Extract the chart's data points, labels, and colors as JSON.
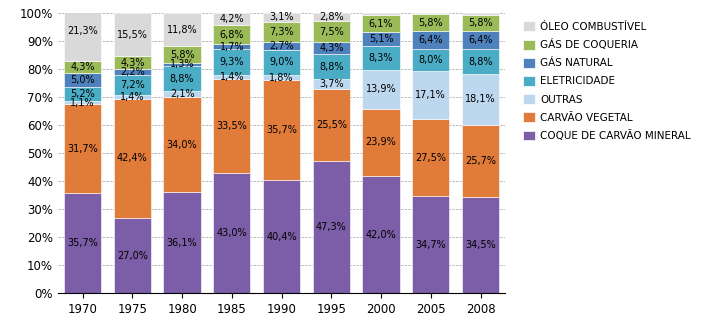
{
  "years": [
    "1970",
    "1975",
    "1980",
    "1985",
    "1990",
    "1995",
    "2000",
    "2005",
    "2008"
  ],
  "series": {
    "COQUE DE CARVÃO MINERAL": [
      35.7,
      27.0,
      36.1,
      43.0,
      40.4,
      47.3,
      42.0,
      34.7,
      34.5
    ],
    "CARVÃO VEGETAL": [
      31.7,
      42.4,
      34.0,
      33.5,
      35.7,
      25.5,
      23.9,
      27.5,
      25.7
    ],
    "OUTRAS": [
      1.1,
      1.4,
      2.1,
      1.4,
      1.8,
      3.7,
      13.9,
      17.1,
      18.1
    ],
    "ELETRICIDADE": [
      5.2,
      7.2,
      8.8,
      9.3,
      9.0,
      8.8,
      8.3,
      8.0,
      8.8
    ],
    "GÁS NATURAL": [
      5.0,
      2.2,
      1.3,
      1.7,
      2.7,
      4.3,
      5.1,
      6.4,
      6.4
    ],
    "GÁS DE COQUERIA": [
      4.3,
      4.3,
      5.8,
      6.8,
      7.3,
      7.5,
      6.1,
      5.8,
      5.8
    ],
    "ÓLEO COMBUSTÍVEL": [
      21.3,
      15.5,
      11.8,
      4.2,
      3.1,
      2.8,
      0.7,
      0.5,
      0.8
    ]
  },
  "colors": {
    "COQUE DE CARVÃO MINERAL": "#7B5EA7",
    "CARVÃO VEGETAL": "#E07B39",
    "OUTRAS": "#BDD7EE",
    "ELETRICIDADE": "#4BACC6",
    "GÁS NATURAL": "#4F81BD",
    "GÁS DE COQUERIA": "#9BBB59",
    "ÓLEO COMBUSTÍVEL": "#D9D9D9"
  },
  "series_order": [
    "COQUE DE CARVÃO MINERAL",
    "CARVÃO VEGETAL",
    "OUTRAS",
    "ELETRICIDADE",
    "GÁS NATURAL",
    "GÁS DE COQUERIA",
    "ÓLEO COMBUSTÍVEL"
  ],
  "legend_order": [
    "ÓLEO COMBUSTÍVEL",
    "GÁS DE COQUERIA",
    "GÁS NATURAL",
    "ELETRICIDADE",
    "OUTRAS",
    "CARVÃO VEGETAL",
    "COQUE DE CARVÃO MINERAL"
  ],
  "ylim": [
    0,
    100
  ],
  "yticks": [
    0,
    10,
    20,
    30,
    40,
    50,
    60,
    70,
    80,
    90,
    100
  ],
  "ytick_labels": [
    "0%",
    "10%",
    "20%",
    "30%",
    "40%",
    "50%",
    "60%",
    "70%",
    "80%",
    "90%",
    "100%"
  ],
  "bar_width": 0.75,
  "font_size": 7.0,
  "text_color": "#000000",
  "figsize": [
    7.22,
    3.26
  ],
  "dpi": 100
}
